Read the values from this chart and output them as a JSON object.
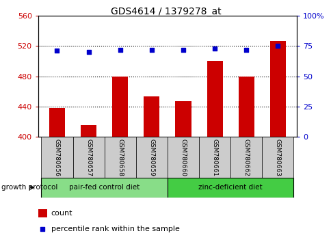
{
  "title": "GDS4614 / 1379278_at",
  "samples": [
    "GSM780656",
    "GSM780657",
    "GSM780658",
    "GSM780659",
    "GSM780660",
    "GSM780661",
    "GSM780662",
    "GSM780663"
  ],
  "counts": [
    438,
    415,
    480,
    453,
    447,
    500,
    480,
    527
  ],
  "percentiles": [
    71,
    70,
    71.5,
    71.5,
    71.5,
    73,
    71.5,
    75
  ],
  "ylim_left": [
    400,
    560
  ],
  "ylim_right": [
    0,
    100
  ],
  "yticks_left": [
    400,
    440,
    480,
    520,
    560
  ],
  "yticks_right": [
    0,
    25,
    50,
    75,
    100
  ],
  "ytick_labels_right": [
    "0",
    "25",
    "50",
    "75",
    "100%"
  ],
  "bar_color": "#cc0000",
  "scatter_color": "#0000cc",
  "bar_width": 0.5,
  "groups": [
    {
      "label": "pair-fed control diet",
      "indices": [
        0,
        1,
        2,
        3
      ],
      "color": "#88dd88"
    },
    {
      "label": "zinc-deficient diet",
      "indices": [
        4,
        5,
        6,
        7
      ],
      "color": "#44cc44"
    }
  ],
  "xlabel_label": "growth protocol",
  "background_color": "#ffffff",
  "label_area_color": "#cccccc",
  "title_color": "#000000",
  "left_tick_color": "#cc0000",
  "right_tick_color": "#0000cc",
  "hline_color": "#000000",
  "hline_vals": [
    440,
    480,
    520
  ]
}
